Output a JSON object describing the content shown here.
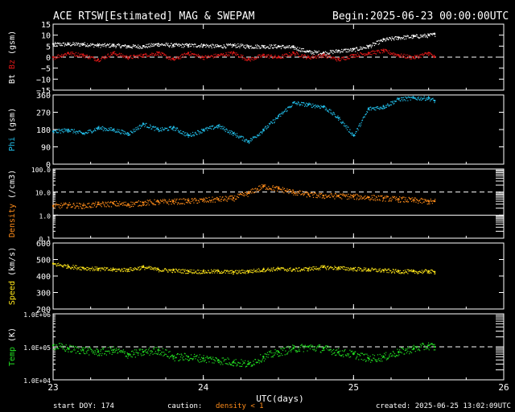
{
  "header": {
    "title": "ACE RTSW[Estimated] MAG & SWEPAM",
    "begin_label": "Begin:",
    "begin_value": "2025-06-23 00:00:00UTC"
  },
  "footer": {
    "start_doy": "start DOY: 174",
    "caution": "caution:",
    "caution_note": "density < 1",
    "created": "created: 2025-06-25 13:02:09UTC"
  },
  "colors": {
    "bt": "#ffffff",
    "bz": "#e01818",
    "phi": "#22bde8",
    "density": "#ff8c1a",
    "speed": "#ffe61a",
    "temp": "#22e022",
    "frame": "#ffffff",
    "background": "#000000"
  },
  "chart_data": {
    "type": "scatter",
    "x": {
      "label": "UTC(days)",
      "range": [
        23,
        26
      ],
      "ticks": [
        "23",
        "24",
        "25",
        "26"
      ],
      "data_end": 25.54
    },
    "panels": [
      {
        "id": "mag",
        "ylabel_parts": [
          {
            "text": "Bt",
            "color": "#ffffff"
          },
          {
            "text": "Bz",
            "color": "#e01818"
          },
          {
            "text": "(gsm)",
            "color": "#ffffff"
          }
        ],
        "ylim": [
          -15,
          15
        ],
        "yticks": [
          -15,
          -10,
          -5,
          0,
          5,
          10,
          15
        ],
        "ytick_labels": [
          "−15",
          "−10",
          "−5",
          "0",
          "5",
          "10",
          "15"
        ],
        "dashed_ref": [
          0
        ],
        "series": [
          {
            "name": "Bt",
            "color": "#ffffff",
            "x": [
              23.0,
              23.1,
              23.2,
              23.3,
              23.4,
              23.5,
              23.6,
              23.7,
              23.8,
              23.9,
              24.0,
              24.1,
              24.2,
              24.3,
              24.4,
              24.5,
              24.6,
              24.7,
              24.8,
              24.9,
              25.0,
              25.1,
              25.2,
              25.3,
              25.4,
              25.5,
              25.54
            ],
            "y": [
              6,
              6,
              6,
              5.5,
              5.5,
              5,
              5,
              6,
              5.5,
              5.5,
              5.5,
              5,
              5.5,
              5,
              5,
              5,
              4.5,
              2.5,
              2,
              3,
              3.5,
              5,
              8,
              9,
              9.5,
              10,
              10.5
            ]
          },
          {
            "name": "Bz",
            "color": "#e01818",
            "x": [
              23.0,
              23.1,
              23.2,
              23.3,
              23.4,
              23.5,
              23.6,
              23.7,
              23.8,
              23.9,
              24.0,
              24.1,
              24.2,
              24.3,
              24.4,
              24.5,
              24.6,
              24.7,
              24.8,
              24.9,
              25.0,
              25.1,
              25.2,
              25.3,
              25.4,
              25.5,
              25.54
            ],
            "y": [
              0,
              2,
              1,
              -1,
              2,
              0,
              1,
              2,
              -1,
              2,
              0,
              1,
              2,
              -1,
              1,
              0,
              2,
              0,
              1,
              -1,
              1,
              2,
              3,
              1,
              0,
              2,
              0
            ]
          }
        ]
      },
      {
        "id": "phi",
        "ylabel_parts": [
          {
            "text": "Phi",
            "color": "#22bde8"
          },
          {
            "text": "(gsm)",
            "color": "#ffffff"
          }
        ],
        "ylim": [
          0,
          360
        ],
        "yticks": [
          0,
          90,
          180,
          270,
          360
        ],
        "ytick_labels": [
          "0",
          "90",
          "180",
          "270",
          "360"
        ],
        "dashed_ref": [],
        "series": [
          {
            "name": "Phi",
            "color": "#22bde8",
            "x": [
              23.0,
              23.1,
              23.2,
              23.3,
              23.4,
              23.5,
              23.6,
              23.7,
              23.8,
              23.9,
              24.0,
              24.1,
              24.2,
              24.3,
              24.4,
              24.5,
              24.6,
              24.7,
              24.8,
              24.9,
              25.0,
              25.1,
              25.2,
              25.3,
              25.4,
              25.5,
              25.54
            ],
            "y": [
              170,
              180,
              160,
              190,
              180,
              160,
              210,
              180,
              190,
              150,
              180,
              200,
              160,
              120,
              180,
              250,
              320,
              310,
              300,
              240,
              150,
              290,
              300,
              340,
              345,
              345,
              330
            ]
          }
        ]
      },
      {
        "id": "density",
        "ylabel_parts": [
          {
            "text": "Density",
            "color": "#ff8c1a"
          },
          {
            "text": "(/cm3)",
            "color": "#ffffff"
          }
        ],
        "ylim": [
          0.1,
          100
        ],
        "log": true,
        "yticks": [
          0.1,
          1,
          10,
          100
        ],
        "ytick_labels": [
          "0.1",
          "1.0",
          "10.0",
          "100.0"
        ],
        "dashed_ref": [
          10
        ],
        "solid_ref": [
          1
        ],
        "series": [
          {
            "name": "Density",
            "color": "#ff8c1a",
            "x": [
              23.0,
              23.1,
              23.2,
              23.3,
              23.4,
              23.5,
              23.6,
              23.7,
              23.8,
              23.9,
              24.0,
              24.1,
              24.2,
              24.3,
              24.4,
              24.5,
              24.6,
              24.7,
              24.8,
              24.9,
              25.0,
              25.1,
              25.2,
              25.3,
              25.4,
              25.5,
              25.54
            ],
            "y": [
              2.5,
              2.8,
              2.6,
              3,
              3.2,
              3,
              3.5,
              3.8,
              4,
              4.2,
              4.5,
              5,
              5.5,
              9,
              18,
              14,
              10,
              8,
              7,
              7,
              6.5,
              6,
              5.5,
              5,
              4.5,
              4,
              4
            ]
          }
        ]
      },
      {
        "id": "speed",
        "ylabel_parts": [
          {
            "text": "Speed",
            "color": "#ffe61a"
          },
          {
            "text": "(km/s)",
            "color": "#ffffff"
          }
        ],
        "ylim": [
          200,
          600
        ],
        "yticks": [
          200,
          300,
          400,
          500,
          600
        ],
        "ytick_labels": [
          "200",
          "300",
          "400",
          "500",
          "600"
        ],
        "dashed_ref": [],
        "series": [
          {
            "name": "Speed",
            "color": "#ffe61a",
            "x": [
              23.0,
              23.1,
              23.2,
              23.3,
              23.4,
              23.5,
              23.6,
              23.7,
              23.8,
              23.9,
              24.0,
              24.1,
              24.2,
              24.3,
              24.4,
              24.5,
              24.6,
              24.7,
              24.8,
              24.9,
              25.0,
              25.1,
              25.2,
              25.3,
              25.4,
              25.5,
              25.54
            ],
            "y": [
              475,
              460,
              450,
              445,
              440,
              440,
              455,
              440,
              435,
              430,
              428,
              430,
              425,
              430,
              440,
              445,
              440,
              445,
              455,
              450,
              445,
              440,
              435,
              430,
              428,
              430,
              425
            ]
          }
        ]
      },
      {
        "id": "temp",
        "ylabel_parts": [
          {
            "text": "Temp",
            "color": "#22e022"
          },
          {
            "text": "(K)",
            "color": "#ffffff"
          }
        ],
        "ylim": [
          10000,
          1000000
        ],
        "log": true,
        "yticks": [
          10000,
          100000,
          1000000
        ],
        "ytick_labels": [
          "1.0E+04",
          "1.0E+05",
          "1.0E+06"
        ],
        "dashed_ref": [
          100000
        ],
        "series": [
          {
            "name": "Temp",
            "color": "#22e022",
            "x": [
              23.0,
              23.1,
              23.2,
              23.3,
              23.4,
              23.5,
              23.6,
              23.7,
              23.8,
              23.9,
              24.0,
              24.1,
              24.2,
              24.3,
              24.4,
              24.5,
              24.6,
              24.7,
              24.8,
              24.9,
              25.0,
              25.1,
              25.2,
              25.3,
              25.4,
              25.5,
              25.54
            ],
            "y": [
              110000,
              90000,
              80000,
              70000,
              80000,
              60000,
              70000,
              80000,
              50000,
              50000,
              45000,
              40000,
              35000,
              30000,
              50000,
              70000,
              90000,
              100000,
              90000,
              70000,
              60000,
              45000,
              50000,
              70000,
              90000,
              110000,
              100000
            ]
          }
        ]
      }
    ]
  }
}
